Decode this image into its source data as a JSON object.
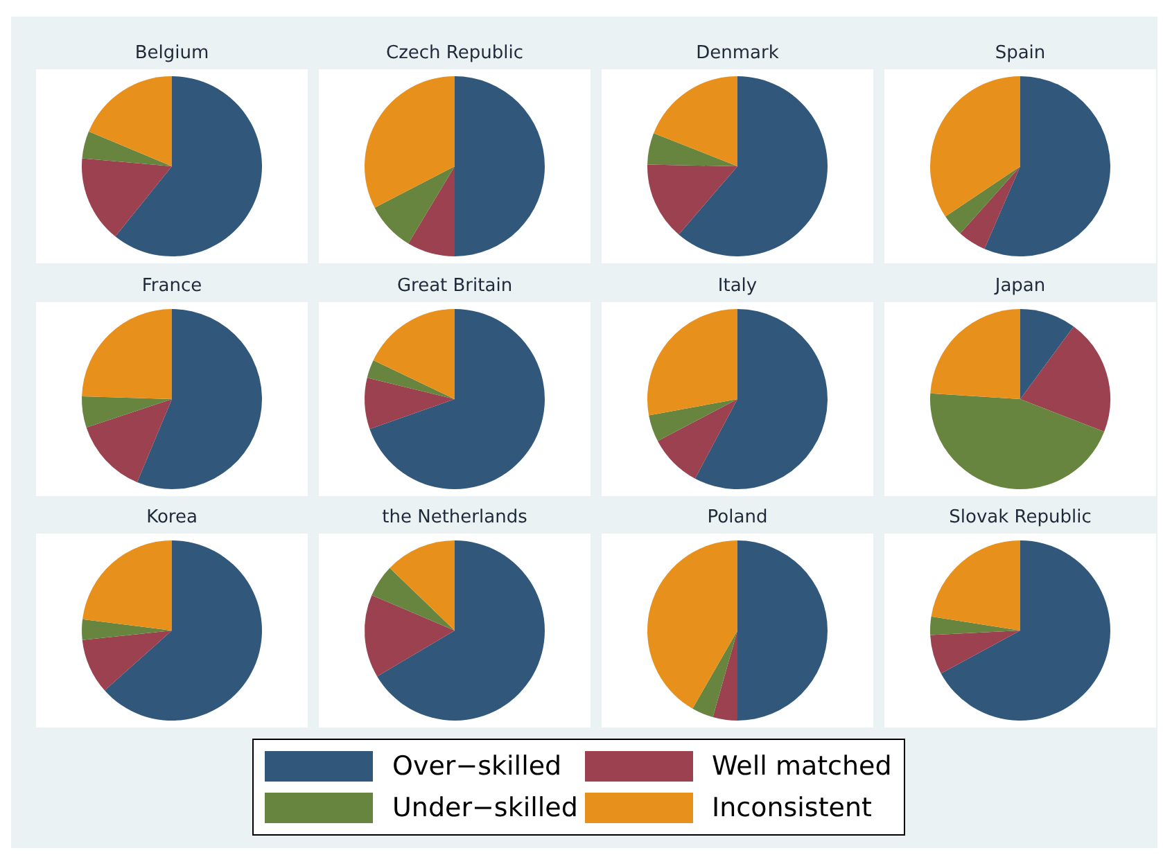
{
  "chart_data": [
    {
      "type": "pie",
      "title": "Belgium",
      "categories": [
        "Over−skilled",
        "Well matched",
        "Under−skilled",
        "Inconsistent"
      ],
      "values": [
        60.8,
        15.6,
        4.9,
        18.7
      ],
      "colors": [
        "#31587a",
        "#9c4150",
        "#67853e",
        "#e8901c"
      ],
      "legend": "bottom"
    },
    {
      "type": "pie",
      "title": "Czech Republic",
      "categories": [
        null,
        null,
        null,
        null
      ],
      "values": [
        50,
        8.6,
        8.8,
        32.6
      ],
      "colors": [
        "#31587a",
        "#9c4150",
        "#67853e",
        "#e8901c"
      ]
    },
    {
      "type": "pie",
      "title": "Denmark",
      "categories": [
        null,
        null,
        null,
        null
      ],
      "values": [
        61.3,
        14,
        5.7,
        19
      ],
      "colors": [
        "#31587a",
        "#9c4150",
        "#67853e",
        "#e8901c"
      ]
    },
    {
      "type": "pie",
      "title": "Spain",
      "categories": [
        null,
        null,
        null,
        null
      ],
      "values": [
        56.5,
        5.1,
        4,
        34.4
      ],
      "colors": [
        "#31587a",
        "#9c4150",
        "#67853e",
        "#e8901c"
      ]
    },
    {
      "type": "pie",
      "title": "France",
      "categories": [
        null,
        null,
        null,
        null
      ],
      "values": [
        56.3,
        13.6,
        5.6,
        24.5
      ],
      "colors": [
        "#31587a",
        "#9c4150",
        "#67853e",
        "#e8901c"
      ]
    },
    {
      "type": "pie",
      "title": "Great Britain",
      "categories": [
        null,
        null,
        null,
        null
      ],
      "values": [
        69.6,
        9.2,
        3.3,
        17.9
      ],
      "colors": [
        "#31587a",
        "#9c4150",
        "#67853e",
        "#e8901c"
      ]
    },
    {
      "type": "pie",
      "title": "Italy",
      "categories": [
        null,
        null,
        null,
        null
      ],
      "values": [
        57.8,
        9.5,
        4.8,
        27.9
      ],
      "colors": [
        "#31587a",
        "#9c4150",
        "#67853e",
        "#e8901c"
      ]
    },
    {
      "type": "pie",
      "title": "Japan",
      "categories": [
        null,
        null,
        null,
        null
      ],
      "values": [
        10.1,
        20.8,
        45.1,
        24
      ],
      "colors": [
        "#31587a",
        "#9c4150",
        "#67853e",
        "#e8901c"
      ]
    },
    {
      "type": "pie",
      "title": "Korea",
      "categories": [
        null,
        null,
        null,
        null
      ],
      "values": [
        63.4,
        9.9,
        3.7,
        23
      ],
      "colors": [
        "#31587a",
        "#9c4150",
        "#67853e",
        "#e8901c"
      ]
    },
    {
      "type": "pie",
      "title": "the Netherlands",
      "categories": [
        null,
        null,
        null,
        null
      ],
      "values": [
        66.5,
        14.9,
        5.8,
        12.8
      ],
      "colors": [
        "#31587a",
        "#9c4150",
        "#67853e",
        "#e8901c"
      ]
    },
    {
      "type": "pie",
      "title": "Poland",
      "categories": [
        null,
        null,
        null,
        null
      ],
      "values": [
        50,
        4.4,
        3.9,
        41.7
      ],
      "colors": [
        "#31587a",
        "#9c4150",
        "#67853e",
        "#e8901c"
      ]
    },
    {
      "type": "pie",
      "title": "Slovak Republic",
      "categories": [
        null,
        null,
        null,
        null
      ],
      "values": [
        67.1,
        7.1,
        3.3,
        22.5
      ],
      "colors": [
        "#31587a",
        "#9c4150",
        "#67853e",
        "#e8901c"
      ]
    }
  ]
}
